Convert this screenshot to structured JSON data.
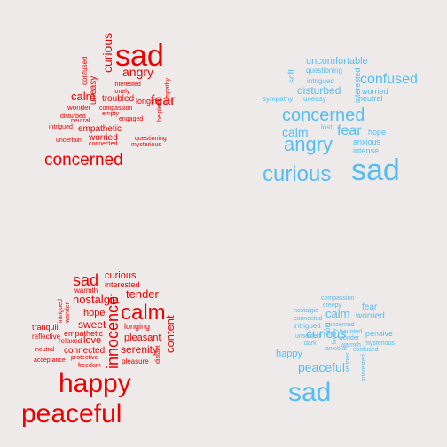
{
  "chart_data": [
    {
      "type": "wordcloud",
      "panel": "top-left",
      "color": "#EE0000",
      "words": [
        "sad",
        "angry",
        "curious",
        "fear",
        "concerned",
        "uneasy",
        "confused",
        "calm",
        "wonder",
        "interested",
        "lonely",
        "troubled",
        "longing",
        "sympathy",
        "helpless",
        "compassion",
        "empty",
        "engaged",
        "neutral",
        "disturbed",
        "intrigued",
        "empathetic",
        "worried",
        "uncertain",
        "connected",
        "questioning",
        "mysterious"
      ]
    },
    {
      "type": "wordcloud",
      "panel": "top-right",
      "color": "#55BDF2",
      "words": [
        "uncomfortable",
        "questioning",
        "soft",
        "intrigued",
        "interested",
        "confused",
        "disturbed",
        "worried",
        "sympathy",
        "uneasy",
        "neutral",
        "concerned",
        "calm",
        "lost",
        "fear",
        "hope",
        "angry",
        "anxious",
        "intense",
        "curious",
        "sad"
      ]
    },
    {
      "type": "wordcloud",
      "panel": "bottom-left",
      "color": "#EE0000",
      "words": [
        "sad",
        "curious",
        "interested",
        "warmth",
        "tender",
        "nostalgia",
        "intrigued",
        "wonder",
        "hope",
        "calm",
        "tranquil",
        "sweet",
        "empathetic",
        "innocence",
        "longing",
        "reflective",
        "relaxed",
        "love",
        "pleasant",
        "content",
        "neutral",
        "connected",
        "serenity",
        "acceptance",
        "protective",
        "freedom",
        "pleasure",
        "distant",
        "happy",
        "peaceful"
      ]
    },
    {
      "type": "wordcloud",
      "panel": "bottom-right",
      "color": "#55BDF2",
      "words": [
        "compassion",
        "creepy",
        "nostalgia",
        "fear",
        "connected",
        "calm",
        "worried",
        "intrigued",
        "concerned",
        "unsettled",
        "haunted",
        "cold",
        "curious",
        "wonder",
        "pensive",
        "dark",
        "anxious",
        "lovely",
        "warmth",
        "mysterious",
        "happy",
        "confused",
        "peaceful",
        "serious",
        "interested",
        "sad"
      ]
    }
  ]
}
